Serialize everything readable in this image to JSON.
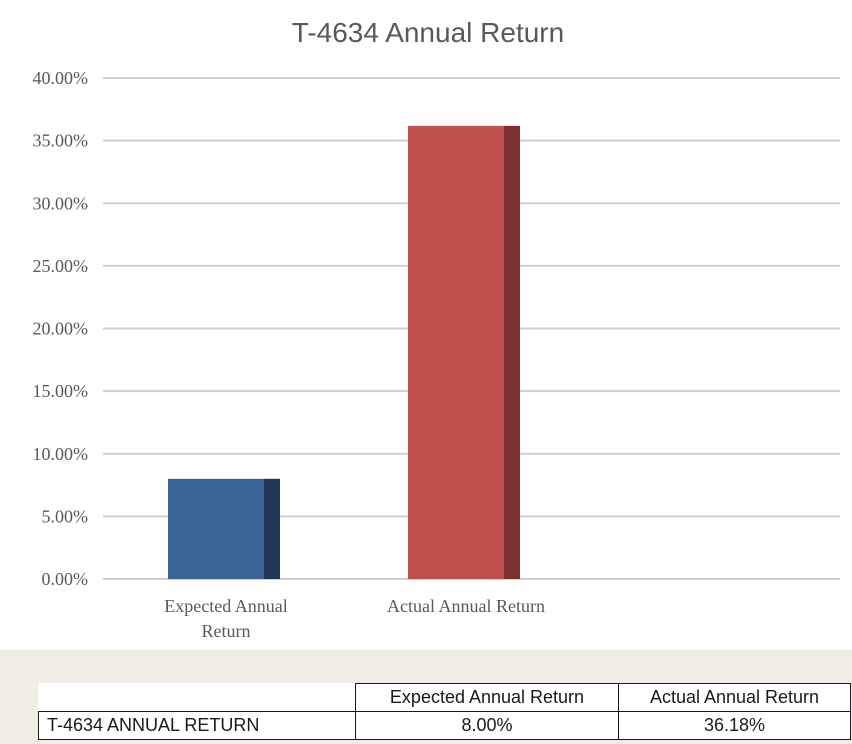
{
  "chart_data": {
    "type": "bar",
    "title": "T-4634 Annual Return",
    "categories": [
      "Expected Annual Return",
      "Actual Annual Return"
    ],
    "category_lines": [
      [
        "Expected Annual",
        "Return"
      ],
      [
        "Actual Annual Return"
      ]
    ],
    "values": [
      8.0,
      36.18
    ],
    "value_unit": "%",
    "ylim": [
      0,
      40
    ],
    "yticks": [
      "0.00%",
      "5.00%",
      "10.00%",
      "15.00%",
      "20.00%",
      "25.00%",
      "30.00%",
      "35.00%",
      "40.00%"
    ],
    "ytick_values": [
      0,
      5,
      10,
      15,
      20,
      25,
      30,
      35,
      40
    ],
    "colors": [
      "#3a6595",
      "#c0504d"
    ],
    "shade_colors": [
      "#223a57",
      "#7a302e"
    ],
    "grid": true,
    "xlabel": "",
    "ylabel": ""
  },
  "table": {
    "headers": [
      "",
      "Expected Annual Return",
      "Actual Annual Return"
    ],
    "rows": [
      [
        "T-4634 ANNUAL RETURN",
        "8.00%",
        "36.18%"
      ]
    ]
  }
}
